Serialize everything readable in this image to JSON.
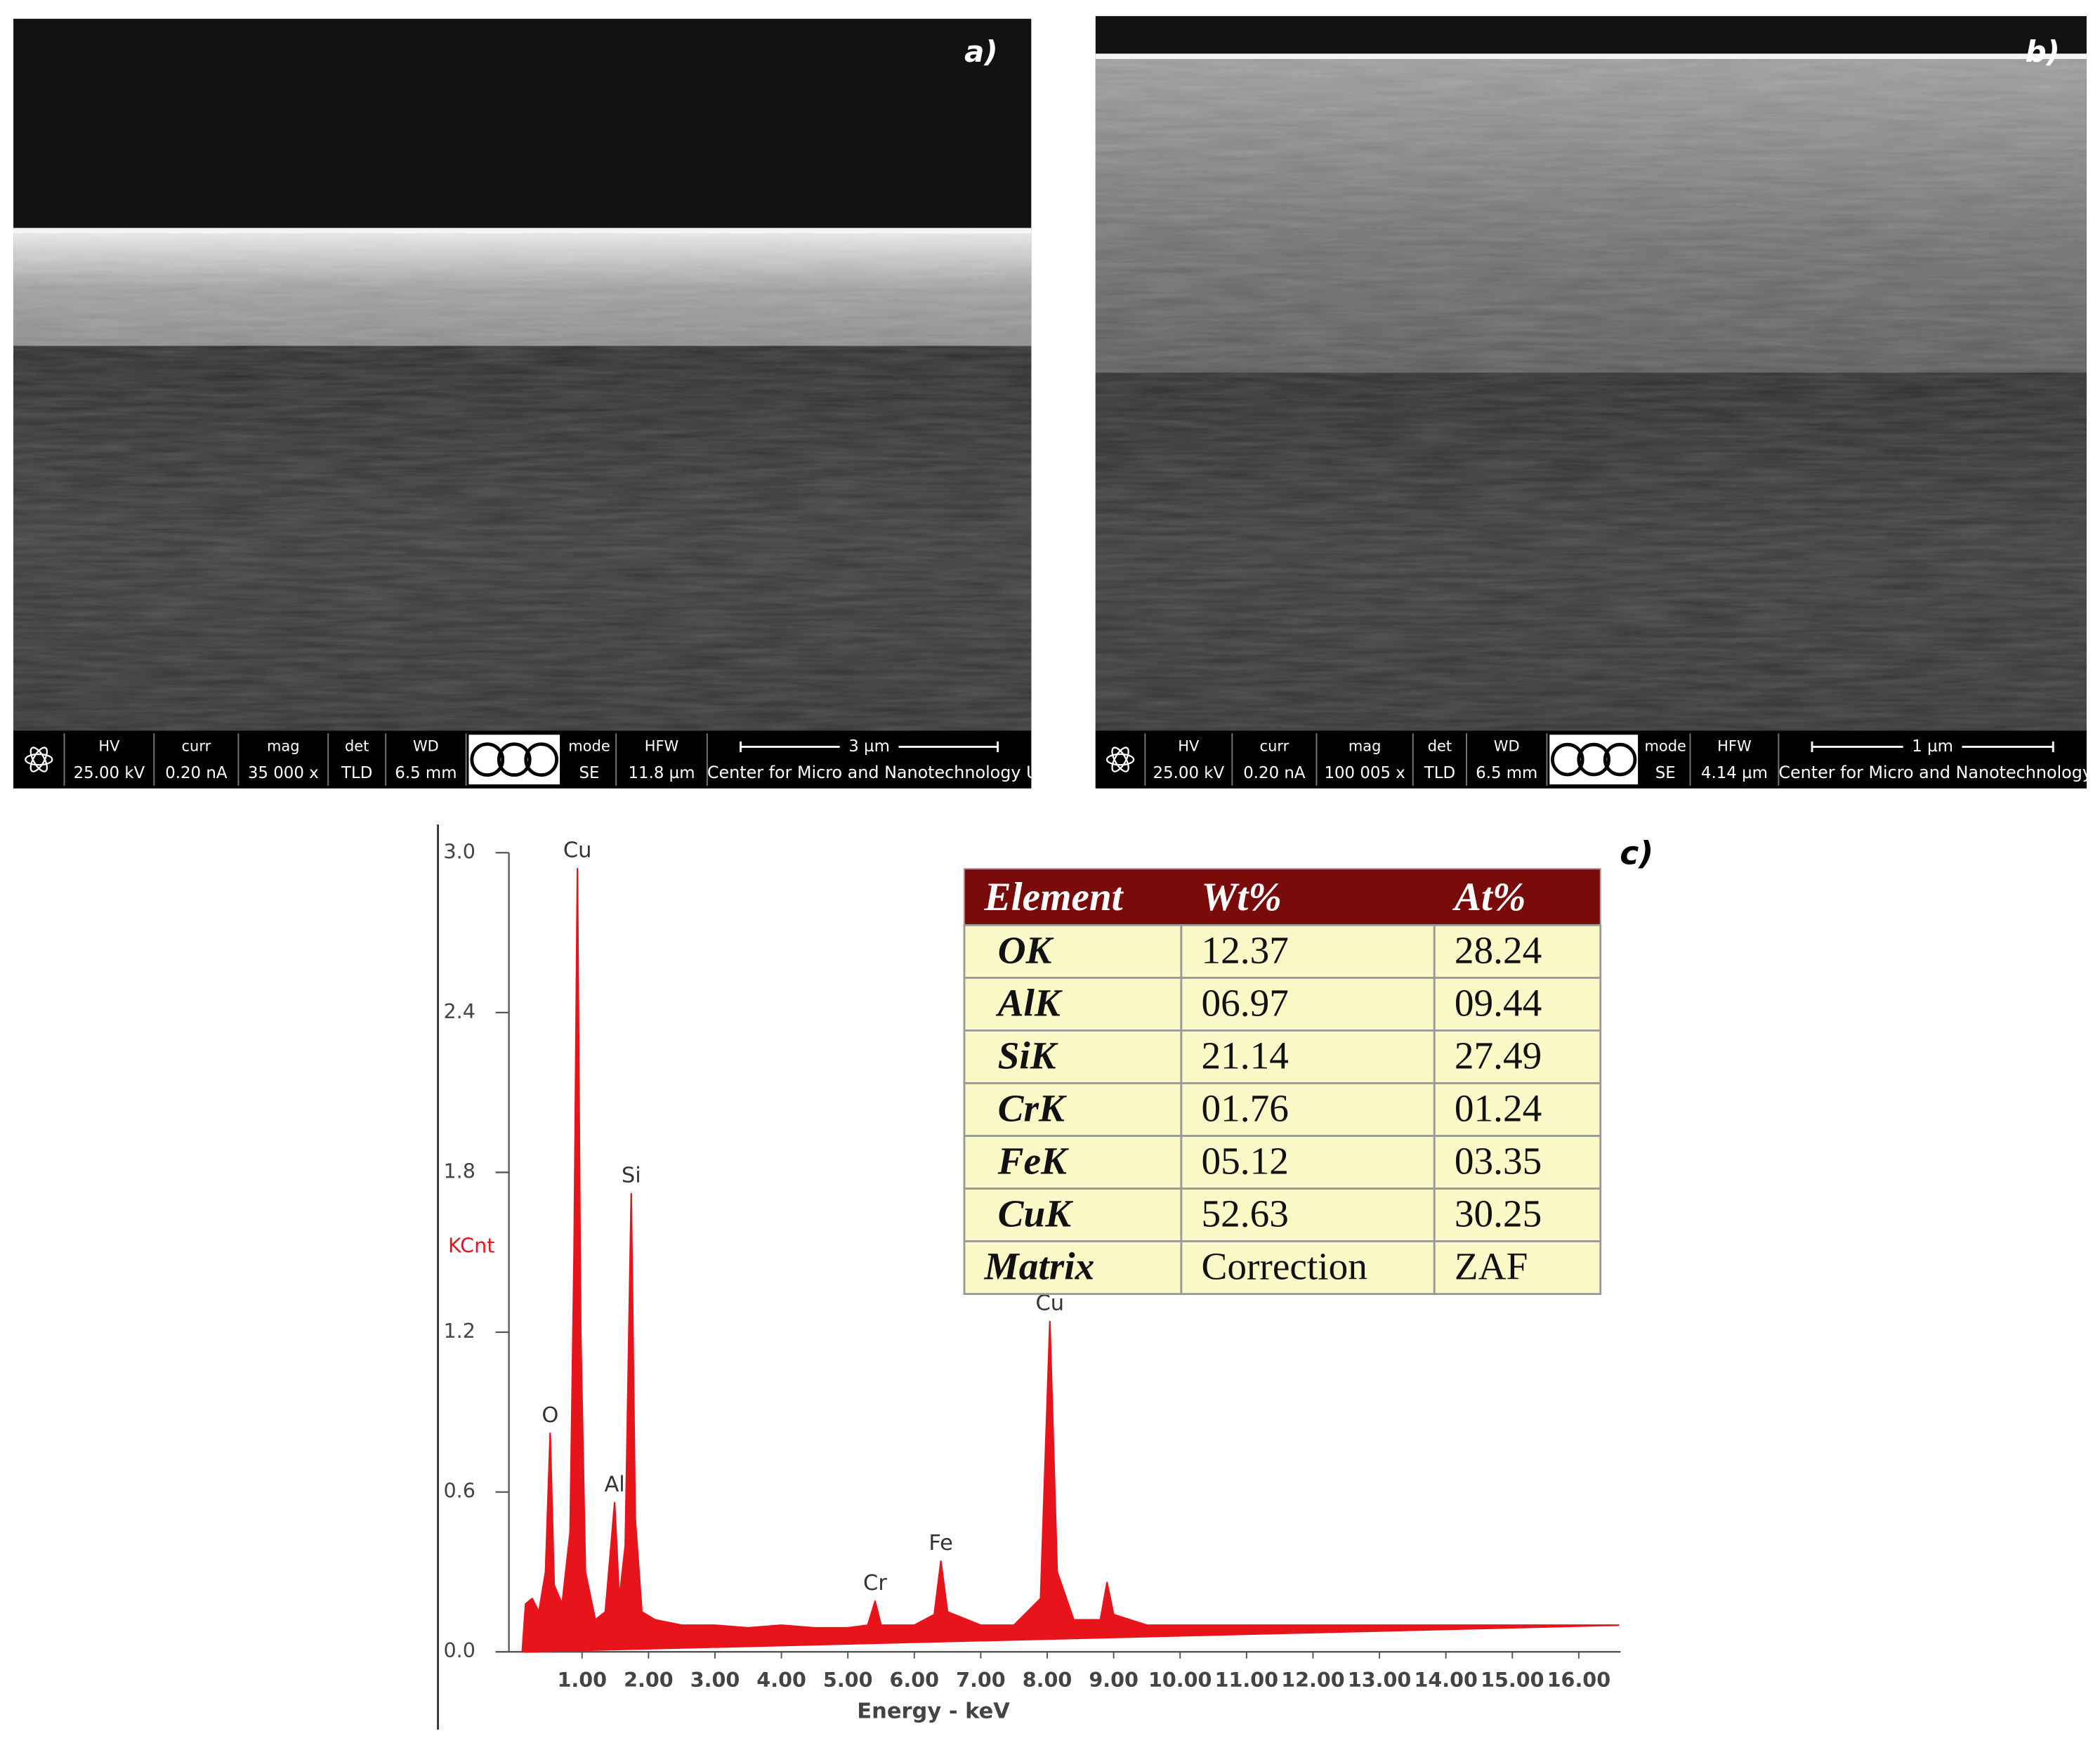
{
  "panels": [
    {
      "label": "a)",
      "fields": [
        {
          "name": "HV",
          "value": "25.00 kV"
        },
        {
          "name": "curr",
          "value": "0.20 nA"
        },
        {
          "name": "mag",
          "value": "35 000 x"
        },
        {
          "name": "det",
          "value": "TLD"
        },
        {
          "name": "WD",
          "value": "6.5 mm"
        },
        {
          "name": "mode",
          "value": "SE"
        },
        {
          "name": "HFW",
          "value": "11.8 µm"
        }
      ],
      "scale_bar": "3 µm",
      "facility": "Center for Micro and Nanotechnology UR"
    },
    {
      "label": "b)",
      "fields": [
        {
          "name": "HV",
          "value": "25.00 kV"
        },
        {
          "name": "curr",
          "value": "0.20 nA"
        },
        {
          "name": "mag",
          "value": "100 005 x"
        },
        {
          "name": "det",
          "value": "TLD"
        },
        {
          "name": "WD",
          "value": "6.5 mm"
        },
        {
          "name": "mode",
          "value": "SE"
        },
        {
          "name": "HFW",
          "value": "4.14 µm"
        }
      ],
      "scale_bar": "1 µm",
      "facility": "Center for Micro and Nanotechnology UR"
    }
  ],
  "chart_data": {
    "type": "area",
    "label": "c)",
    "ylabel": "KCnt",
    "xlabel": "Energy - keV",
    "xlim": [
      0,
      16.6
    ],
    "ylim": [
      0,
      3
    ],
    "xticks": [
      {
        "value": 1,
        "label": "1.00"
      },
      {
        "value": 2,
        "label": "2.00"
      },
      {
        "value": 3,
        "label": "3.00"
      },
      {
        "value": 4,
        "label": "4.00"
      },
      {
        "value": 5,
        "label": "5.00"
      },
      {
        "value": 6,
        "label": "6.00"
      },
      {
        "value": 7,
        "label": "7.00"
      },
      {
        "value": 8,
        "label": "8.00"
      },
      {
        "value": 9,
        "label": "9.00"
      },
      {
        "value": 10,
        "label": "10.00"
      },
      {
        "value": 11,
        "label": "11.00"
      },
      {
        "value": 12,
        "label": "12.00"
      },
      {
        "value": 13,
        "label": "13.00"
      },
      {
        "value": 14,
        "label": "14.00"
      },
      {
        "value": 15,
        "label": "15.00"
      },
      {
        "value": 16,
        "label": "16.00"
      }
    ],
    "yticks": [
      {
        "value": 0,
        "label": "0.0"
      },
      {
        "value": 0.6,
        "label": "0.6"
      },
      {
        "value": 1.2,
        "label": "1.2"
      },
      {
        "value": 1.8,
        "label": "1.8"
      },
      {
        "value": 2.4,
        "label": "2.4"
      },
      {
        "value": 3,
        "label": "3.0"
      }
    ],
    "series": [
      {
        "color": "#e8141c",
        "x": [
          0.1,
          0.15,
          0.25,
          0.35,
          0.45,
          0.52,
          0.58,
          0.7,
          0.82,
          0.88,
          0.93,
          0.98,
          1.05,
          1.2,
          1.35,
          1.49,
          1.56,
          1.65,
          1.74,
          1.8,
          1.9,
          2.1,
          2.5,
          3.0,
          3.5,
          4.0,
          4.5,
          5.0,
          5.3,
          5.41,
          5.5,
          6.0,
          6.3,
          6.4,
          6.5,
          7.0,
          7.5,
          7.9,
          8.04,
          8.15,
          8.4,
          8.8,
          8.9,
          9.0,
          9.5,
          10,
          11,
          12,
          13,
          14,
          15,
          16,
          16.6
        ],
        "values": [
          0,
          0.18,
          0.2,
          0.15,
          0.3,
          0.82,
          0.25,
          0.18,
          0.45,
          1.5,
          2.94,
          1.2,
          0.3,
          0.12,
          0.15,
          0.56,
          0.2,
          0.4,
          1.72,
          0.5,
          0.15,
          0.12,
          0.1,
          0.1,
          0.09,
          0.1,
          0.09,
          0.09,
          0.1,
          0.19,
          0.1,
          0.1,
          0.14,
          0.34,
          0.15,
          0.1,
          0.1,
          0.2,
          1.24,
          0.3,
          0.12,
          0.12,
          0.26,
          0.14,
          0.1,
          0.1,
          0.1,
          0.1,
          0.1,
          0.1,
          0.1,
          0.1,
          0.1
        ]
      }
    ],
    "peaks": [
      {
        "label": "O",
        "x": 0.52,
        "y": 0.82
      },
      {
        "label": "Cu",
        "x": 0.93,
        "y": 2.94
      },
      {
        "label": "Al",
        "x": 1.49,
        "y": 0.56
      },
      {
        "label": "Si",
        "x": 1.74,
        "y": 1.72
      },
      {
        "label": "Cr",
        "x": 5.41,
        "y": 0.19
      },
      {
        "label": "Fe",
        "x": 6.4,
        "y": 0.34
      },
      {
        "label": "Cu",
        "x": 8.04,
        "y": 1.24
      }
    ]
  },
  "table": {
    "header": [
      "Element",
      "Wt%",
      "At%"
    ],
    "rows": [
      [
        "OK",
        "12.37",
        "28.24"
      ],
      [
        "AlK",
        "06.97",
        "09.44"
      ],
      [
        "SiK",
        "21.14",
        "27.49"
      ],
      [
        "CrK",
        "01.76",
        "01.24"
      ],
      [
        "FeK",
        "05.12",
        "03.35"
      ],
      [
        "CuK",
        "52.63",
        "30.25"
      ],
      [
        "Matrix",
        "Correction",
        "ZAF"
      ]
    ]
  }
}
